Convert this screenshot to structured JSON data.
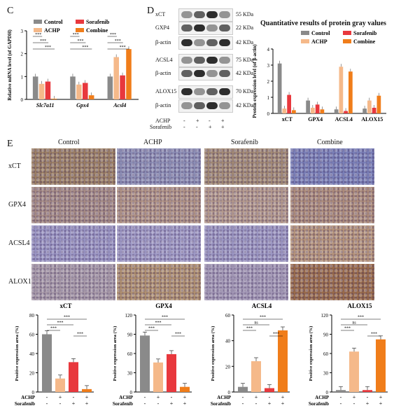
{
  "panel_c": {
    "letter": "C",
    "ylabel": "Relative mRNA level (of GAPDH)",
    "legend": [
      "Control",
      "Sorafenib",
      "ACHP",
      "Combine"
    ],
    "chart_data": {
      "type": "bar",
      "categories": [
        "Slc7a11",
        "Gpx4",
        "Acsl4"
      ],
      "ylim": [
        0,
        3
      ],
      "yticks": [
        "0",
        "1",
        "2",
        "3"
      ],
      "series": [
        {
          "name": "Control",
          "values": [
            1.0,
            1.0,
            1.0
          ]
        },
        {
          "name": "ACHP",
          "values": [
            0.68,
            0.65,
            1.85
          ]
        },
        {
          "name": "Sorafenib",
          "values": [
            0.78,
            0.72,
            1.05
          ]
        },
        {
          "name": "Combine",
          "values": [
            0.03,
            0.18,
            2.2
          ]
        }
      ],
      "sig": "***"
    }
  },
  "panel_d": {
    "letter": "D",
    "blot_labels": [
      "xCT",
      "GXP4",
      "β-actin",
      "ACSL4",
      "β-actin",
      "ALOX15",
      "β-actin"
    ],
    "sizes": [
      "55 KDa",
      "22 KDa",
      "42 KDa",
      "75 KDa",
      "42 KDa",
      "70 KDa",
      "42 KDa"
    ],
    "treat_rows": [
      "ACHP",
      "Sorafenib"
    ],
    "achp_marks": [
      "-",
      "+",
      "-",
      "+"
    ],
    "sora_marks": [
      "-",
      "-",
      "+",
      "+"
    ],
    "title": "Quantitative results of protein gray values",
    "ylabel": "Protein expression level (of β-actin)",
    "legend": [
      "Control",
      "Sorafenib",
      "ACHP",
      "Combine"
    ],
    "chart_data": {
      "type": "bar",
      "categories": [
        "xCT",
        "GPX4",
        "ACSL4",
        "ALOX15"
      ],
      "ylim": [
        0,
        4
      ],
      "yticks": [
        "0",
        "1",
        "2",
        "3",
        "4"
      ],
      "series": [
        {
          "name": "Control",
          "values": [
            3.1,
            0.8,
            0.25,
            0.3
          ]
        },
        {
          "name": "ACHP",
          "values": [
            0.3,
            0.35,
            2.9,
            0.8
          ]
        },
        {
          "name": "Sorafenib",
          "values": [
            1.15,
            0.55,
            0.15,
            0.35
          ]
        },
        {
          "name": "Combine",
          "values": [
            0.2,
            0.25,
            2.6,
            1.1
          ]
        }
      ]
    }
  },
  "panel_e": {
    "letter": "E",
    "columns": [
      "Control",
      "ACHP",
      "Sorafenib",
      "Combine"
    ],
    "rows": [
      "xCT",
      "GPX4",
      "ACSL4",
      "ALOX15"
    ],
    "ihc_colors": [
      [
        "#9c7f63",
        "#8d8fb6",
        "#a38a74",
        "#7a80b8"
      ],
      [
        "#a68b84",
        "#b19384",
        "#b59a8c",
        "#ad8c7a"
      ],
      [
        "#9a95c4",
        "#9f9ac6",
        "#9c97c3",
        "#b6947a"
      ],
      [
        "#a89aa8",
        "#b0906f",
        "#a398b6",
        "#9a6b49"
      ]
    ]
  },
  "bottom": {
    "ylabel": "Positive expression area (%)",
    "x_rows": [
      "ACHP",
      "Sorafenib"
    ],
    "achp_marks": [
      "-",
      "+",
      "-",
      "+"
    ],
    "sora_marks": [
      "-",
      "-",
      "+",
      "+"
    ],
    "colors": [
      "#8a8a8a",
      "#f5b98a",
      "#e8383d",
      "#f07d1a"
    ],
    "chart_data": [
      {
        "type": "bar",
        "title": "xCT",
        "ylim": [
          0,
          80
        ],
        "yticks": [
          "0",
          "20",
          "40",
          "60",
          "80"
        ],
        "values": [
          60,
          14,
          31,
          3
        ],
        "sig": [
          "***",
          "***",
          "***",
          "***"
        ]
      },
      {
        "type": "bar",
        "title": "GPX4",
        "ylim": [
          0,
          120
        ],
        "yticks": [
          "0",
          "30",
          "60",
          "90",
          "120"
        ],
        "values": [
          88,
          46,
          59,
          8
        ],
        "sig": [
          "***",
          "***",
          "***",
          "***"
        ]
      },
      {
        "type": "bar",
        "title": "ACSL4",
        "ylim": [
          0,
          60
        ],
        "yticks": [
          "0",
          "20",
          "40",
          "60"
        ],
        "values": [
          4,
          24,
          3,
          48
        ],
        "sig": [
          "***",
          "ns",
          "***",
          "***"
        ]
      },
      {
        "type": "bar",
        "title": "ALOX15",
        "ylim": [
          0,
          120
        ],
        "yticks": [
          "0",
          "30",
          "60",
          "90",
          "120"
        ],
        "values": [
          3,
          63,
          3,
          82
        ],
        "sig": [
          "***",
          "ns",
          "***",
          "***"
        ]
      }
    ]
  }
}
